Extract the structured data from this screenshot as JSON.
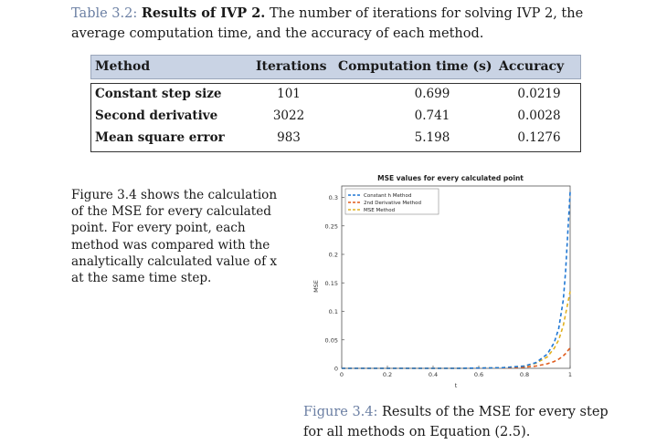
{
  "table_caption": {
    "label": "Table 3.2:",
    "bold": "Results of IVP 2.",
    "text": "The number of iterations for solving IVP 2, the average computation time, and the accuracy of each method."
  },
  "table": {
    "headers": [
      "Method",
      "Iterations",
      "Computation time (s)",
      "Accuracy"
    ],
    "rows": [
      [
        "Constant step size",
        "101",
        "0.699",
        "0.0219"
      ],
      [
        "Second derivative",
        "3022",
        "0.741",
        "0.0028"
      ],
      [
        "Mean square error",
        "983",
        "5.198",
        "0.1276"
      ]
    ]
  },
  "paragraph": "Figure 3.4 shows the calculation of the MSE for every calculated point. For every point, each method was compared with the analytically calculated value of x at the same time step.",
  "figure_caption": {
    "label": "Figure 3.4:",
    "text": "Results of the MSE for every step for all methods on Equation (2.5)."
  },
  "colors": {
    "constant": "#1f77d4",
    "second_derivative": "#e05a1a",
    "mse": "#e0b020"
  },
  "chart_data": {
    "type": "line",
    "title": "MSE values for every calculated point",
    "xlabel": "t",
    "ylabel": "MSE",
    "xlim": [
      0,
      1
    ],
    "ylim": [
      0,
      0.32
    ],
    "xticks": [
      "0",
      "0.2",
      "0.4",
      "0.6",
      "0.8",
      "1"
    ],
    "yticks": [
      "0",
      "0.05",
      "0.1",
      "0.15",
      "0.2",
      "0.25",
      "0.3"
    ],
    "legend_position": "top-left",
    "grid": false,
    "series": [
      {
        "name": "Constant h Method",
        "style": "dashed",
        "x": [
          0,
          0.5,
          0.7,
          0.8,
          0.85,
          0.9,
          0.93,
          0.95,
          0.97,
          0.98,
          0.99,
          1.0
        ],
        "y": [
          0,
          0.0,
          0.001,
          0.004,
          0.01,
          0.025,
          0.045,
          0.07,
          0.12,
          0.17,
          0.24,
          0.31
        ]
      },
      {
        "name": "2nd Derivative Method",
        "style": "dashed",
        "x": [
          0,
          0.5,
          0.7,
          0.8,
          0.85,
          0.9,
          0.93,
          0.95,
          0.97,
          0.98,
          0.99,
          1.0
        ],
        "y": [
          0,
          0.0,
          0.0005,
          0.002,
          0.004,
          0.008,
          0.012,
          0.016,
          0.022,
          0.026,
          0.031,
          0.036
        ]
      },
      {
        "name": "MSE Method",
        "style": "dashed",
        "x": [
          0,
          0.5,
          0.7,
          0.8,
          0.85,
          0.9,
          0.93,
          0.95,
          0.97,
          0.98,
          0.99,
          1.0
        ],
        "y": [
          0,
          0.0,
          0.001,
          0.004,
          0.009,
          0.02,
          0.035,
          0.05,
          0.075,
          0.095,
          0.115,
          0.135
        ]
      }
    ]
  }
}
